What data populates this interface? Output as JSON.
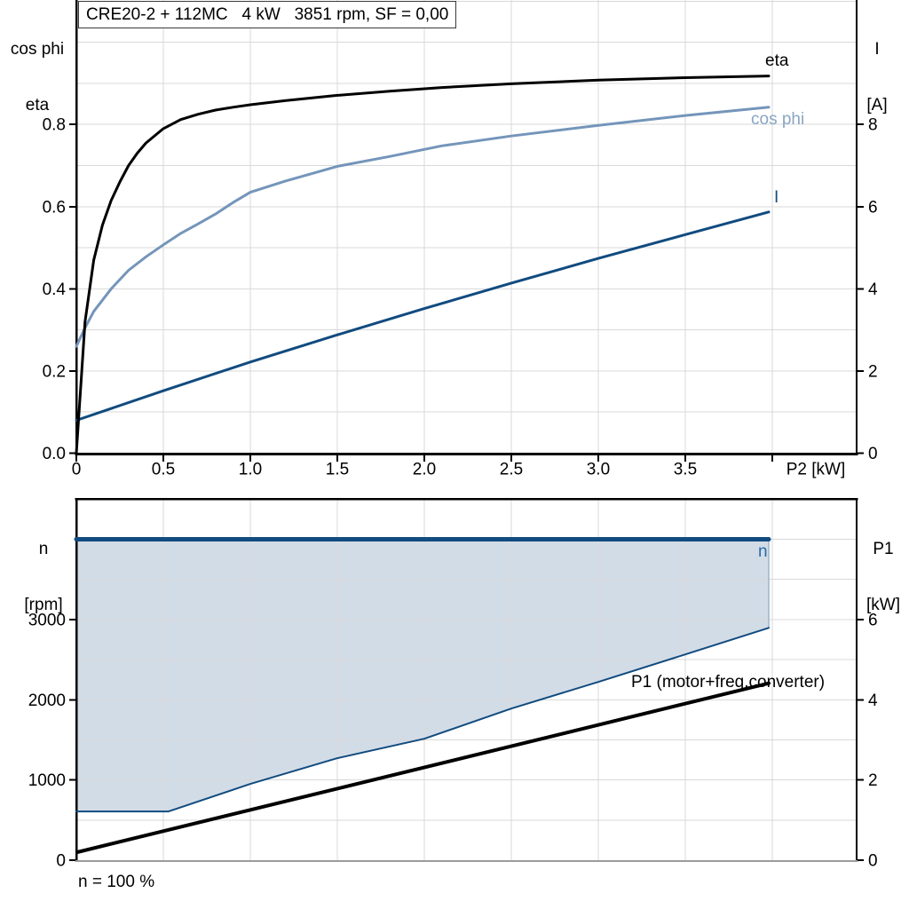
{
  "chart_data": [
    {
      "type": "line",
      "id": "motor-performance-curves",
      "title": "CRE20-2 + 112MC   4 kW   3851 rpm, SF = 0,00",
      "ylabel_left": [
        "cos phi",
        "eta"
      ],
      "ylabel_right": [
        "I",
        "[A]"
      ],
      "xlabel": "P2 [kW]",
      "xlim": [
        0,
        4.485
      ],
      "ylim": [
        0,
        1.103
      ],
      "ylim_right": [
        0,
        11.03
      ],
      "grid": true,
      "xgrid": [
        0.5,
        1,
        1.5,
        2,
        2.5,
        3,
        3.5,
        4
      ],
      "ygrid": [
        0.1,
        0.2,
        0.3,
        0.4,
        0.5,
        0.6,
        0.7,
        0.8,
        0.9,
        1.0,
        1.1
      ],
      "xticks": [
        {
          "v": 0,
          "label": "0"
        },
        {
          "v": 0.5,
          "label": "0.5"
        },
        {
          "v": 1,
          "label": "1.0"
        },
        {
          "v": 1.5,
          "label": "1.5"
        },
        {
          "v": 2,
          "label": "2.0"
        },
        {
          "v": 2.5,
          "label": "2.5"
        },
        {
          "v": 3,
          "label": "3.0"
        },
        {
          "v": 3.5,
          "label": "3.5"
        },
        {
          "v": 4,
          "label": ""
        }
      ],
      "yticks_left": [
        {
          "v": 0.0,
          "label": "0.0"
        },
        {
          "v": 0.2,
          "label": "0.2"
        },
        {
          "v": 0.4,
          "label": "0.4"
        },
        {
          "v": 0.6,
          "label": "0.6"
        },
        {
          "v": 0.8,
          "label": "0.8"
        }
      ],
      "yticks_right": [
        {
          "v": 0,
          "label": "0"
        },
        {
          "v": 2,
          "label": "2"
        },
        {
          "v": 4,
          "label": "4"
        },
        {
          "v": 6,
          "label": "6"
        },
        {
          "v": 8,
          "label": "8"
        }
      ],
      "series": [
        {
          "name": "I",
          "label": "I",
          "axis": "right",
          "color": "#114b7f",
          "width": 3,
          "points": [
            [
              0,
              0.8
            ],
            [
              0.5,
              1.52
            ],
            [
              1.0,
              2.22
            ],
            [
              1.5,
              2.88
            ],
            [
              2.0,
              3.52
            ],
            [
              2.5,
              4.14
            ],
            [
              3.0,
              4.74
            ],
            [
              3.5,
              5.32
            ],
            [
              3.98,
              5.87
            ]
          ]
        },
        {
          "name": "cos phi",
          "label": "cos phi",
          "axis": "left",
          "color": "#7495ba",
          "width": 3,
          "points": [
            [
              0,
              0.26
            ],
            [
              0.05,
              0.305
            ],
            [
              0.1,
              0.345
            ],
            [
              0.2,
              0.4
            ],
            [
              0.3,
              0.445
            ],
            [
              0.4,
              0.478
            ],
            [
              0.5,
              0.507
            ],
            [
              0.6,
              0.535
            ],
            [
              0.7,
              0.558
            ],
            [
              0.8,
              0.582
            ],
            [
              0.9,
              0.61
            ],
            [
              1.0,
              0.635
            ],
            [
              1.2,
              0.662
            ],
            [
              1.5,
              0.698
            ],
            [
              1.8,
              0.722
            ],
            [
              2.1,
              0.748
            ],
            [
              2.5,
              0.772
            ],
            [
              3.0,
              0.798
            ],
            [
              3.5,
              0.822
            ],
            [
              3.98,
              0.842
            ]
          ]
        },
        {
          "name": "eta",
          "label": "eta",
          "axis": "left",
          "color": "#000000",
          "width": 3,
          "points": [
            [
              0,
              0
            ],
            [
              0.05,
              0.32
            ],
            [
              0.1,
              0.47
            ],
            [
              0.15,
              0.555
            ],
            [
              0.2,
              0.615
            ],
            [
              0.25,
              0.66
            ],
            [
              0.3,
              0.7
            ],
            [
              0.35,
              0.73
            ],
            [
              0.4,
              0.755
            ],
            [
              0.5,
              0.79
            ],
            [
              0.6,
              0.812
            ],
            [
              0.7,
              0.825
            ],
            [
              0.8,
              0.835
            ],
            [
              0.9,
              0.842
            ],
            [
              1.0,
              0.848
            ],
            [
              1.2,
              0.858
            ],
            [
              1.5,
              0.871
            ],
            [
              1.8,
              0.881
            ],
            [
              2.1,
              0.89
            ],
            [
              2.5,
              0.899
            ],
            [
              3.0,
              0.908
            ],
            [
              3.5,
              0.914
            ],
            [
              3.98,
              0.918
            ]
          ]
        }
      ]
    },
    {
      "type": "line",
      "id": "speed-and-input-power",
      "ylabel_left": [
        "n",
        "[rpm]"
      ],
      "ylabel_right": [
        "P1",
        "[kW]"
      ],
      "xlabel": "",
      "annotation": "n = 100 %",
      "xlim": [
        0,
        4.485
      ],
      "ylim": [
        0,
        4515
      ],
      "ylim_right": [
        0,
        9.03
      ],
      "grid": true,
      "xgrid": [
        0.5,
        1,
        1.5,
        2,
        2.5,
        3,
        3.5,
        4
      ],
      "ygrid": [
        500,
        1000,
        1500,
        2000,
        2500,
        3000,
        3500,
        4000
      ],
      "xticks": [],
      "yticks_left": [
        {
          "v": 0,
          "label": "0"
        },
        {
          "v": 1000,
          "label": "1000"
        },
        {
          "v": 2000,
          "label": "2000"
        },
        {
          "v": 3000,
          "label": "3000"
        }
      ],
      "yticks_right": [
        {
          "v": 0,
          "label": "0"
        },
        {
          "v": 2,
          "label": "2"
        },
        {
          "v": 4,
          "label": "4"
        },
        {
          "v": 6,
          "label": "6"
        }
      ],
      "area": {
        "top_series": "n",
        "bottom_series": "n-min",
        "color": "#d2dce7"
      },
      "series": [
        {
          "name": "n-drop",
          "label": "",
          "axis": "left",
          "color": "#9db3c9",
          "width": 1.5,
          "points": [
            [
              3.98,
              4000
            ],
            [
              3.98,
              2896
            ]
          ]
        },
        {
          "name": "n-min",
          "label": "",
          "axis": "left",
          "color": "#114b7f",
          "width": 2,
          "points": [
            [
              0,
              608
            ],
            [
              0.53,
              608
            ],
            [
              1.0,
              951
            ],
            [
              1.5,
              1271
            ],
            [
              2.0,
              1514
            ],
            [
              2.5,
              1890
            ],
            [
              3.0,
              2222
            ],
            [
              3.5,
              2565
            ],
            [
              3.98,
              2896
            ]
          ]
        },
        {
          "name": "n",
          "label": "n",
          "axis": "left",
          "color": "#114b7f",
          "width": 5,
          "points": [
            [
              0,
              4000
            ],
            [
              3.98,
              4000
            ]
          ]
        },
        {
          "name": "P1",
          "label": "P1 (motor+freq.converter)",
          "axis": "right",
          "color": "#000000",
          "width": 4,
          "points": [
            [
              0.005,
              0.2
            ],
            [
              3.98,
              4.41
            ]
          ]
        }
      ]
    }
  ]
}
